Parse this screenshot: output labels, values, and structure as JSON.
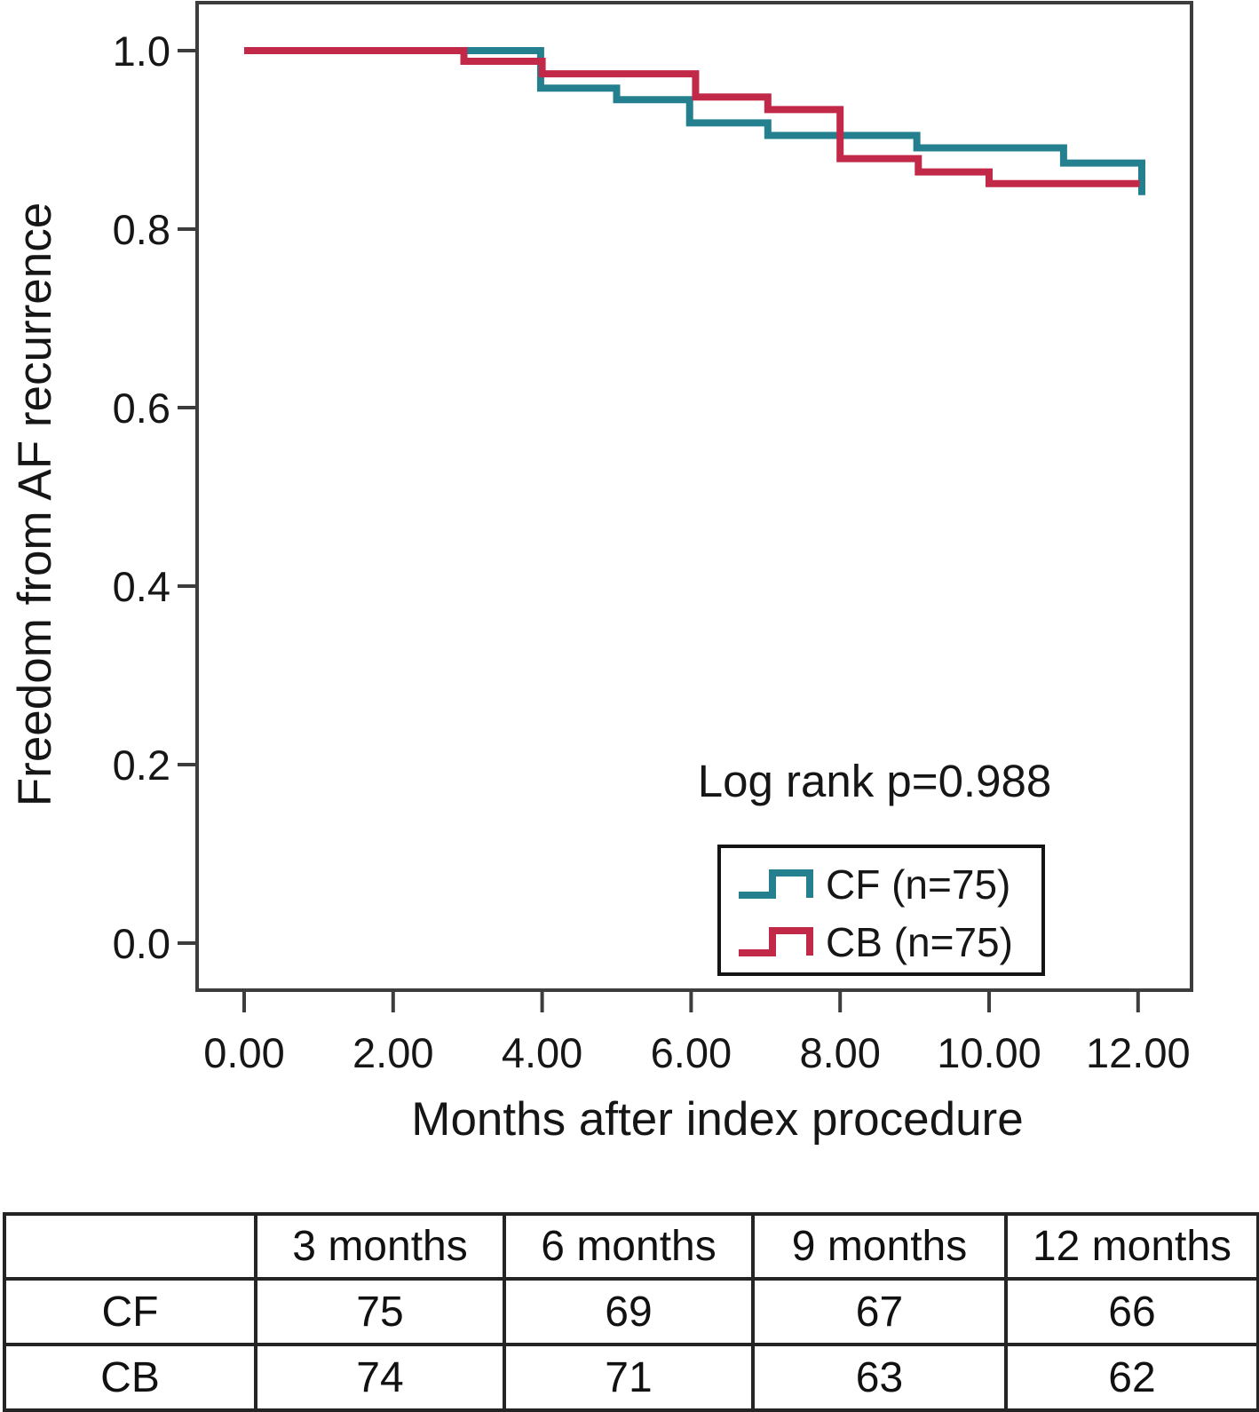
{
  "figure": {
    "y_axis_title": "Freedom from AF recurrence",
    "x_axis_title": "Months after index procedure",
    "annotation": "Log rank p=0.988"
  },
  "chart_data": {
    "type": "line",
    "subtype": "kaplan-meier-step",
    "title": "",
    "xlabel": "Months after index procedure",
    "ylabel": "Freedom from AF recurrence",
    "xlim": [
      -0.63,
      12.72
    ],
    "ylim": [
      -0.053,
      1.054
    ],
    "grid": false,
    "legend_position": "inside-bottom-right",
    "annotation": "Log rank p=0.988",
    "x_ticks": {
      "values": [
        0,
        2,
        4,
        6,
        8,
        10,
        12
      ],
      "labels": [
        "0.00",
        "2.00",
        "4.00",
        "6.00",
        "8.00",
        "10.00",
        "12.00"
      ]
    },
    "y_ticks": {
      "values": [
        1.0,
        0.8,
        0.6,
        0.4,
        0.2,
        0.0
      ],
      "labels": [
        "1.0",
        "0.8",
        "0.6",
        "0.4",
        "0.2",
        "0.0"
      ]
    },
    "series": [
      {
        "name": "CF (n=75)",
        "group": "CF",
        "n": 75,
        "color": "#24808f",
        "start_value": 1.0,
        "x_start": 0,
        "steps": [
          [
            3.98,
            0.958
          ],
          [
            5.0,
            0.945
          ],
          [
            5.98,
            0.919
          ],
          [
            7.03,
            0.905
          ],
          [
            9.03,
            0.891
          ],
          [
            11.0,
            0.874
          ],
          [
            12.05,
            0.838
          ]
        ],
        "x_end": 12.05
      },
      {
        "name": "CB (n=75)",
        "group": "CB",
        "n": 75,
        "color": "#c22847",
        "start_value": 1.0,
        "x_start": 0,
        "steps": [
          [
            2.95,
            0.988
          ],
          [
            4.0,
            0.974
          ],
          [
            6.06,
            0.948
          ],
          [
            7.03,
            0.934
          ],
          [
            8.0,
            0.879
          ],
          [
            9.05,
            0.864
          ],
          [
            10.0,
            0.851
          ]
        ],
        "x_end": 12.02
      }
    ]
  },
  "risk_table": {
    "column_headers": [
      "3 months",
      "6 months",
      "9 months",
      "12 months"
    ],
    "rows": [
      {
        "label": "CF",
        "values": [
          "75",
          "69",
          "67",
          "66"
        ]
      },
      {
        "label": "CB",
        "values": [
          "74",
          "71",
          "63",
          "62"
        ]
      }
    ]
  }
}
